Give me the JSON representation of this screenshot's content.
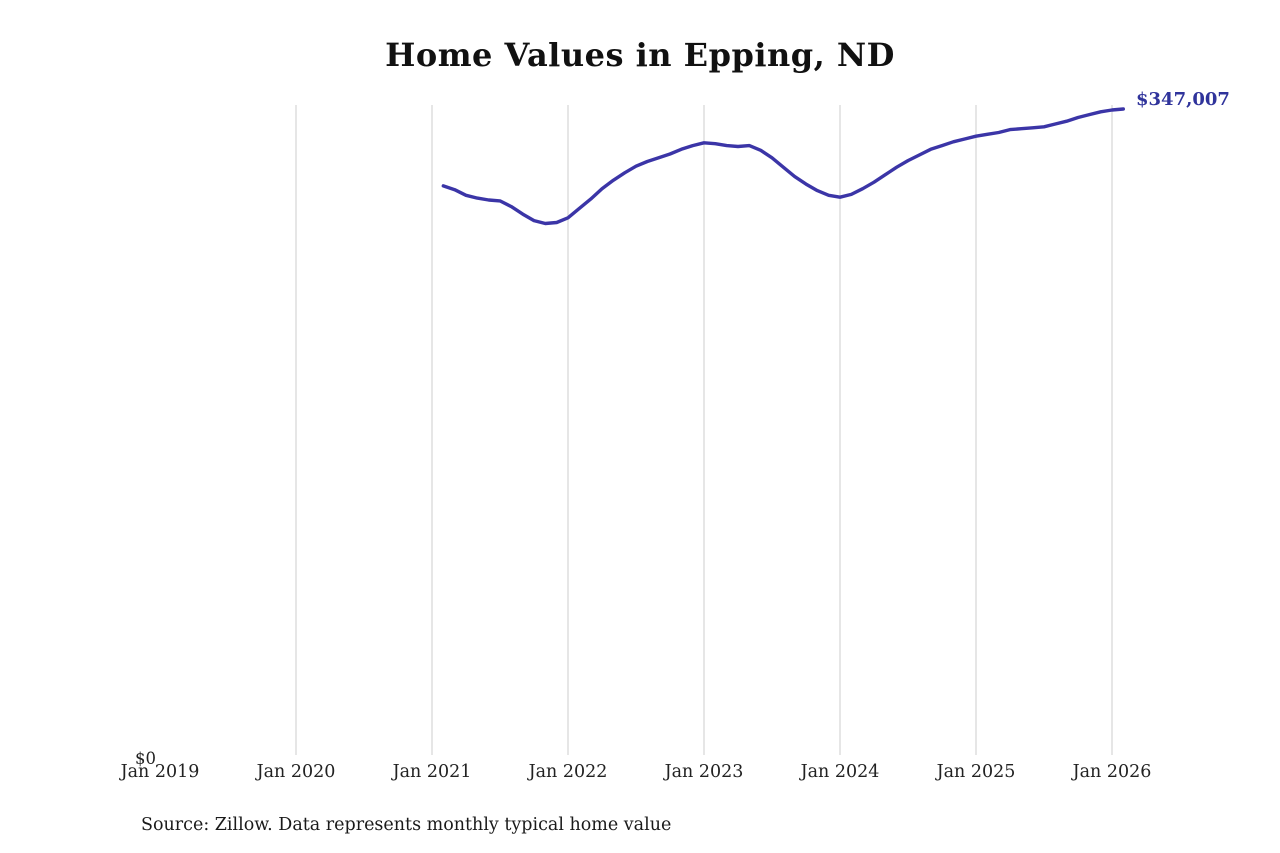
{
  "title": "Home Values in Epping, ND",
  "end_value_label": "$347,007",
  "y_zero_label": "$0",
  "source_note": "Source: Zillow. Data represents monthly typical home value",
  "chart_data": {
    "type": "line",
    "title": "Home Values in Epping, ND",
    "series_name": "Monthly typical home value",
    "unit": "USD",
    "x": [
      "2021-02",
      "2021-03",
      "2021-04",
      "2021-05",
      "2021-06",
      "2021-07",
      "2021-08",
      "2021-09",
      "2021-10",
      "2021-11",
      "2021-12",
      "2022-01",
      "2022-02",
      "2022-03",
      "2022-04",
      "2022-05",
      "2022-06",
      "2022-07",
      "2022-08",
      "2022-09",
      "2022-10",
      "2022-11",
      "2022-12",
      "2023-01",
      "2023-02",
      "2023-03",
      "2023-04",
      "2023-05",
      "2023-06",
      "2023-07",
      "2023-08",
      "2023-09",
      "2023-10",
      "2023-11",
      "2023-12",
      "2024-01",
      "2024-02",
      "2024-03",
      "2024-04",
      "2024-05",
      "2024-06",
      "2024-07",
      "2024-08",
      "2024-09",
      "2024-10",
      "2024-11",
      "2024-12",
      "2025-01",
      "2025-02",
      "2025-03",
      "2025-04",
      "2025-05",
      "2025-06",
      "2025-07",
      "2025-08",
      "2025-09",
      "2025-10",
      "2025-11",
      "2025-12",
      "2026-01",
      "2026-02"
    ],
    "values": [
      306000,
      304000,
      301000,
      299500,
      298500,
      298000,
      295000,
      291000,
      287500,
      286000,
      286500,
      289000,
      294000,
      299000,
      304500,
      309000,
      313000,
      316500,
      319000,
      321000,
      323000,
      325500,
      327500,
      329000,
      328500,
      327500,
      327000,
      327500,
      325000,
      321000,
      316000,
      311000,
      307000,
      303500,
      301000,
      300000,
      301500,
      304500,
      308000,
      312000,
      316000,
      319500,
      322500,
      325500,
      327500,
      329500,
      331000,
      332500,
      333500,
      334500,
      336000,
      336500,
      337000,
      337500,
      339000,
      340500,
      342500,
      344000,
      345500,
      346500,
      347007
    ],
    "end_label": "$347,007",
    "xticks": [
      "Jan 2019",
      "Jan 2020",
      "Jan 2021",
      "Jan 2022",
      "Jan 2023",
      "Jan 2024",
      "Jan 2025",
      "Jan 2026"
    ],
    "gridlines_at": [
      "Jan 2020",
      "Jan 2021",
      "Jan 2022",
      "Jan 2023",
      "Jan 2024",
      "Jan 2025",
      "Jan 2026"
    ],
    "ylabel": "",
    "y_axis_bottom_label": "$0",
    "ylim": [
      0,
      360000
    ],
    "legend": "none",
    "grid": "vertical-only",
    "line_color": "#3b35a7",
    "label_color": "#2f339b",
    "grid_color": "#cccccc",
    "background_color": "#ffffff"
  }
}
